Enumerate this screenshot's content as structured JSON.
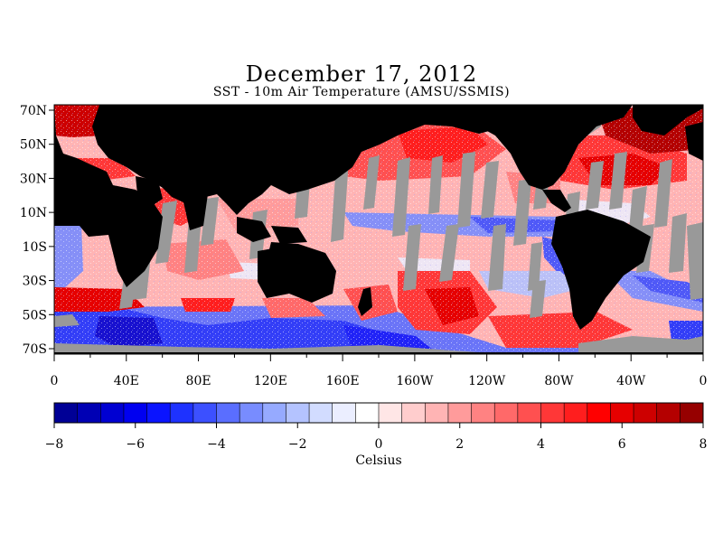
{
  "title": "December 17, 2012",
  "subtitle": "SST - 10m Air Temperature (AMSU/SSMIS)",
  "latitude_labels": [
    "70N",
    "50N",
    "30N",
    "10N",
    "10S",
    "30S",
    "50S",
    "70S"
  ],
  "longitude_labels": [
    "0",
    "40E",
    "80E",
    "120E",
    "160E",
    "160W",
    "120W",
    "80W",
    "40W",
    "0"
  ],
  "colorbar": {
    "ticks": [
      "−8",
      "−6",
      "−4",
      "−2",
      "0",
      "2",
      "4",
      "6",
      "8"
    ],
    "min": -8,
    "max": 8,
    "unit_label": "Celsius",
    "colors": [
      "#000096",
      "#0000b4",
      "#0000d2",
      "#0000f0",
      "#0a14ff",
      "#1e32ff",
      "#3c50ff",
      "#5a6eff",
      "#788cff",
      "#96aaff",
      "#b4c3ff",
      "#d2dcff",
      "#ebeeff",
      "#ffffff",
      "#ffe6e6",
      "#ffcdcd",
      "#ffb4b4",
      "#ff9b9b",
      "#ff8282",
      "#ff6969",
      "#ff5050",
      "#ff3737",
      "#ff1e1e",
      "#ff0000",
      "#e60000",
      "#cd0000",
      "#b40000",
      "#960000"
    ]
  },
  "colors": {
    "land": "#000000",
    "no_data": "#999999",
    "warm": "#ff2020",
    "cool": "#2040ff"
  }
}
